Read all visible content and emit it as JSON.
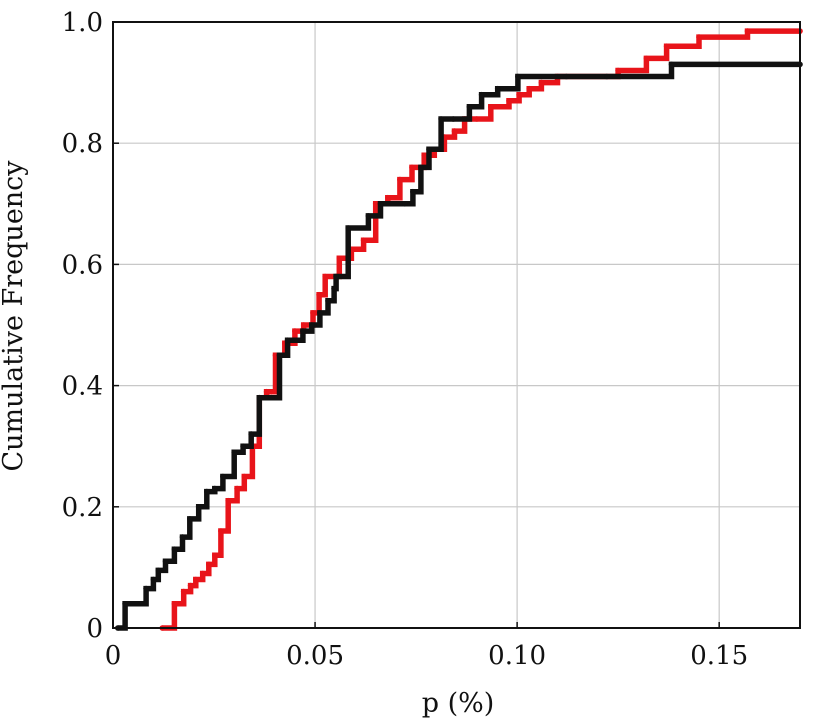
{
  "chart_data": {
    "type": "line",
    "step": true,
    "xlabel": "p (%)",
    "ylabel": "Cumulative Frequency",
    "xlim": [
      0,
      0.17
    ],
    "ylim": [
      0,
      1.0
    ],
    "xticks": [
      {
        "value": 0,
        "label": "0"
      },
      {
        "value": 0.05,
        "label": "0.05"
      },
      {
        "value": 0.1,
        "label": "0.10"
      },
      {
        "value": 0.15,
        "label": "0.15"
      }
    ],
    "yticks": [
      {
        "value": 0,
        "label": "0"
      },
      {
        "value": 0.2,
        "label": "0.2"
      },
      {
        "value": 0.4,
        "label": "0.4"
      },
      {
        "value": 0.6,
        "label": "0.6"
      },
      {
        "value": 0.8,
        "label": "0.8"
      },
      {
        "value": 1.0,
        "label": "1.0"
      }
    ],
    "grid": true,
    "series": [
      {
        "color": "#e8141a",
        "x": [
          0.0122,
          0.0152,
          0.0175,
          0.0192,
          0.0205,
          0.0222,
          0.0237,
          0.0252,
          0.0267,
          0.0285,
          0.0307,
          0.0325,
          0.0345,
          0.0362,
          0.038,
          0.0402,
          0.0425,
          0.045,
          0.0472,
          0.0495,
          0.051,
          0.0525,
          0.056,
          0.059,
          0.062,
          0.065,
          0.068,
          0.071,
          0.074,
          0.077,
          0.0795,
          0.082,
          0.0845,
          0.087,
          0.09,
          0.0935,
          0.098,
          0.1005,
          0.103,
          0.106,
          0.11,
          0.125,
          0.132,
          0.137,
          0.145,
          0.157,
          0.17
        ],
        "y": [
          0.0,
          0.04,
          0.06,
          0.07,
          0.08,
          0.09,
          0.105,
          0.12,
          0.16,
          0.21,
          0.23,
          0.25,
          0.3,
          0.38,
          0.39,
          0.45,
          0.47,
          0.49,
          0.5,
          0.52,
          0.55,
          0.58,
          0.61,
          0.625,
          0.64,
          0.7,
          0.71,
          0.74,
          0.76,
          0.78,
          0.79,
          0.81,
          0.82,
          0.84,
          0.84,
          0.86,
          0.87,
          0.88,
          0.89,
          0.9,
          0.91,
          0.92,
          0.94,
          0.96,
          0.975,
          0.985,
          0.985
        ]
      },
      {
        "color": "#111111",
        "x": [
          0.0012,
          0.003,
          0.0082,
          0.01,
          0.0112,
          0.013,
          0.0152,
          0.0172,
          0.019,
          0.0212,
          0.0232,
          0.0252,
          0.0272,
          0.03,
          0.0322,
          0.0342,
          0.0362,
          0.0392,
          0.0412,
          0.0432,
          0.047,
          0.0492,
          0.0512,
          0.0532,
          0.0547,
          0.0552,
          0.0582,
          0.0632,
          0.0662,
          0.0722,
          0.0742,
          0.0762,
          0.0782,
          0.0812,
          0.0842,
          0.0882,
          0.0912,
          0.0952,
          0.1002,
          0.1122,
          0.1222,
          0.1382,
          0.17
        ],
        "y": [
          0.0,
          0.04,
          0.065,
          0.08,
          0.095,
          0.11,
          0.13,
          0.15,
          0.18,
          0.2,
          0.225,
          0.23,
          0.25,
          0.29,
          0.3,
          0.32,
          0.38,
          0.38,
          0.45,
          0.475,
          0.49,
          0.5,
          0.52,
          0.54,
          0.56,
          0.58,
          0.66,
          0.68,
          0.7,
          0.7,
          0.72,
          0.76,
          0.79,
          0.84,
          0.84,
          0.86,
          0.88,
          0.89,
          0.91,
          0.91,
          0.91,
          0.93,
          0.93
        ]
      }
    ]
  }
}
